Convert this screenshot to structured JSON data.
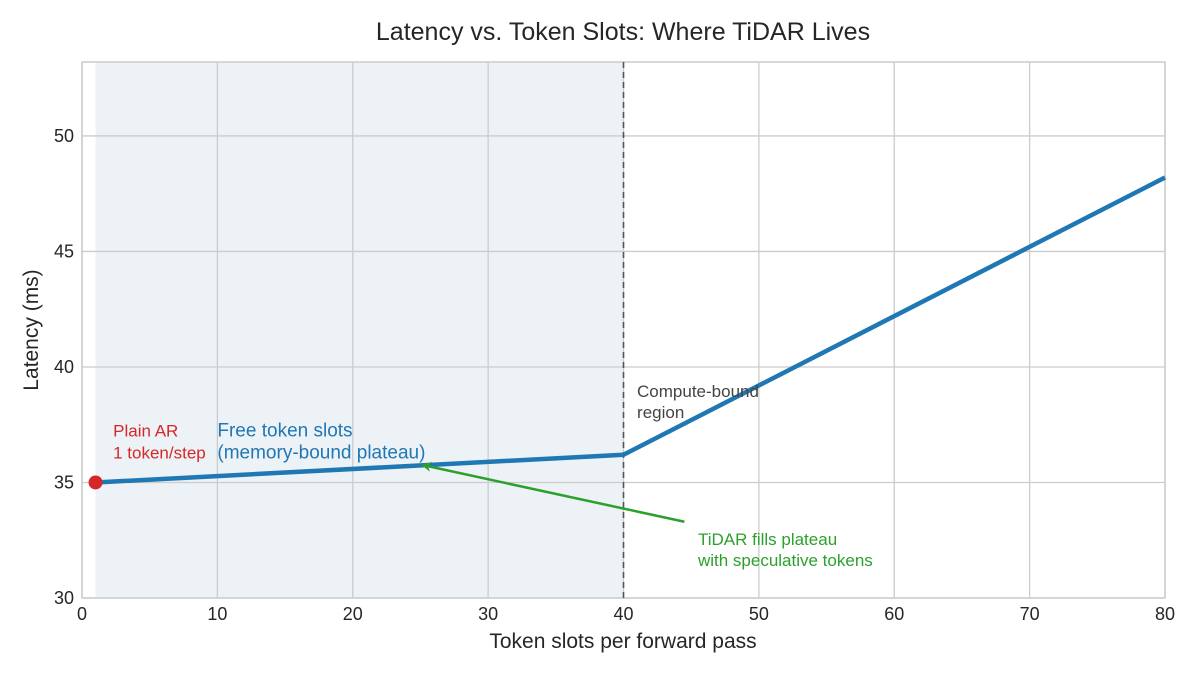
{
  "chart_data": {
    "type": "line",
    "title": "Latency vs. Token Slots: Where TiDAR Lives",
    "xlabel": "Token slots per forward pass",
    "ylabel": "Latency (ms)",
    "xlim": [
      0,
      80
    ],
    "ylim": [
      30,
      53.2
    ],
    "xticks": [
      0,
      10,
      20,
      30,
      40,
      50,
      60,
      70,
      80
    ],
    "yticks": [
      30,
      35,
      40,
      45,
      50
    ],
    "grid": true,
    "series": [
      {
        "name": "Latency",
        "color": "#1f77b4",
        "x": [
          1,
          40,
          80
        ],
        "y": [
          35.0,
          36.2,
          48.2
        ]
      }
    ],
    "highlight_region": {
      "x_start": 1,
      "x_end": 40,
      "color": "#dce6f0"
    },
    "threshold_line": {
      "x": 40,
      "color": "#555555"
    },
    "marker_point": {
      "x": 1,
      "y": 35.0,
      "color": "#d62728"
    },
    "annotations": {
      "plain_ar": {
        "lines": [
          "Plain AR",
          "1 token/step"
        ],
        "color": "#d62728",
        "x": 2.3,
        "y": 37.0
      },
      "free_slots": {
        "lines": [
          "Free token slots",
          "(memory-bound plateau)"
        ],
        "color": "#1f77b4",
        "x": 10,
        "y": 37.0
      },
      "compute_bound": {
        "lines": [
          "Compute-bound",
          "region"
        ],
        "color": "#444444",
        "x": 41,
        "y": 38.7
      },
      "tidar": {
        "lines": [
          "TiDAR fills plateau",
          "with speculative tokens"
        ],
        "color": "#2ca02c",
        "x": 45.5,
        "y": 32.3,
        "arrow_from": [
          44.5,
          33.3
        ],
        "arrow_to": [
          25.2,
          35.75
        ]
      }
    }
  }
}
